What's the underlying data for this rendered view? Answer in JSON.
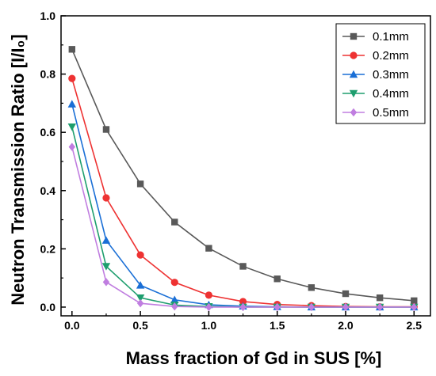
{
  "chart_data": {
    "type": "line",
    "xlabel": "Mass fraction of Gd in SUS [%]",
    "ylabel": "Neutron Transmission Ratio [I/I₀]",
    "xlim": [
      -0.08,
      2.62
    ],
    "ylim": [
      -0.03,
      1.0
    ],
    "x_ticks": [
      "0.0",
      "0.5",
      "1.0",
      "1.5",
      "2.0",
      "2.5"
    ],
    "y_ticks": [
      "0.0",
      "0.2",
      "0.4",
      "0.6",
      "0.8",
      "1.0"
    ],
    "grid": false,
    "legend_position": "top-right",
    "x": [
      0,
      0.25,
      0.5,
      0.75,
      1.0,
      1.25,
      1.5,
      1.75,
      2.0,
      2.25,
      2.5
    ],
    "series": [
      {
        "name": "0.1mm",
        "color": "#595959",
        "marker": "square",
        "values": [
          0.885,
          0.61,
          0.423,
          0.292,
          0.202,
          0.14,
          0.097,
          0.067,
          0.046,
          0.032,
          0.022
        ]
      },
      {
        "name": "0.2mm",
        "color": "#ee3232",
        "marker": "circle",
        "values": [
          0.785,
          0.375,
          0.179,
          0.085,
          0.041,
          0.019,
          0.009,
          0.005,
          0.002,
          0.001,
          0.001
        ]
      },
      {
        "name": "0.3mm",
        "color": "#1a6fd6",
        "marker": "triangle-up",
        "values": [
          0.697,
          0.229,
          0.075,
          0.025,
          0.008,
          0.003,
          0.001,
          0.0,
          0.0,
          0.0,
          0.0
        ]
      },
      {
        "name": "0.4mm",
        "color": "#1e9e6e",
        "marker": "triangle-down",
        "values": [
          0.619,
          0.14,
          0.032,
          0.007,
          0.002,
          0.0,
          0.0,
          0.0,
          0.0,
          0.0,
          0.0
        ]
      },
      {
        "name": "0.5mm",
        "color": "#c07ee0",
        "marker": "diamond",
        "values": [
          0.55,
          0.086,
          0.013,
          0.002,
          0.0,
          0.0,
          0.0,
          0.0,
          0.0,
          0.0,
          0.0
        ]
      }
    ]
  }
}
